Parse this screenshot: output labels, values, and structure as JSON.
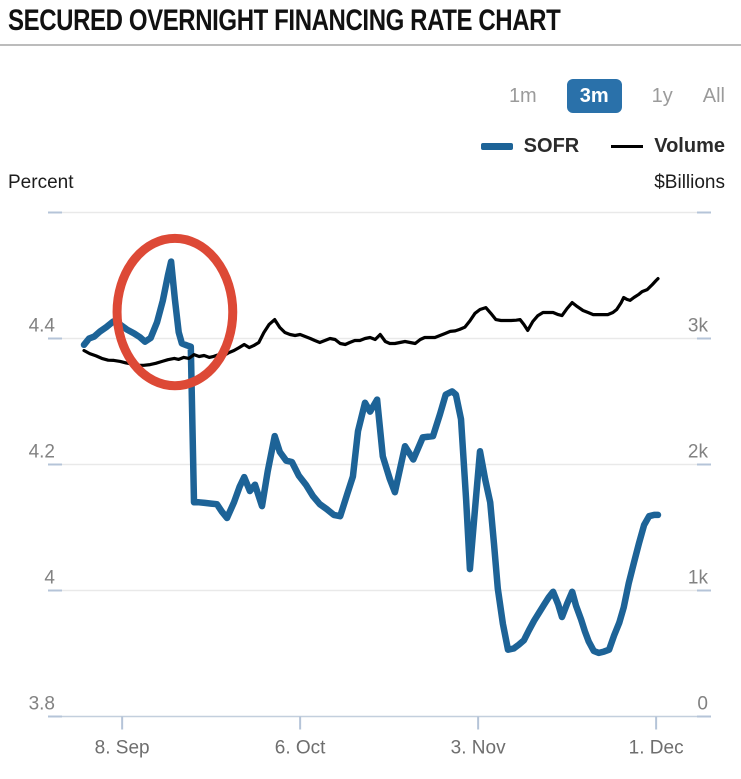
{
  "header": {
    "title": "SECURED OVERNIGHT FINANCING RATE CHART"
  },
  "range_buttons": [
    {
      "label": "1m",
      "selected": false
    },
    {
      "label": "3m",
      "selected": true
    },
    {
      "label": "1y",
      "selected": false
    },
    {
      "label": "All",
      "selected": false
    }
  ],
  "legend": [
    {
      "label": "SOFR",
      "color": "#1d6397"
    },
    {
      "label": "Volume",
      "color": "#000000"
    }
  ],
  "axis_units": {
    "left": "Percent",
    "right": "$Billions"
  },
  "chart_data": {
    "type": "line",
    "title": "SECURED OVERNIGHT FINANCING RATE CHART",
    "selected_range": "3m",
    "x": {
      "unit": "days_since_start",
      "start_date": "2. Sep",
      "domain": [
        0,
        90.3
      ],
      "tick_labels": [
        "8. Sep",
        "6. Oct",
        "3. Nov",
        "1. Dec"
      ],
      "tick_day_offsets": [
        6,
        34,
        62,
        90
      ]
    },
    "y_left": {
      "label": "Percent",
      "range": [
        3.8,
        4.6
      ],
      "tick_labels": [
        "4.4",
        "4.2",
        "4",
        "3.8"
      ],
      "tick_values": [
        4.4,
        4.2,
        4.0,
        3.8
      ]
    },
    "y_right": {
      "label": "$Billions",
      "range": [
        0,
        4000
      ],
      "tick_labels": [
        "3k",
        "2k",
        "1k",
        "0"
      ],
      "tick_values": [
        3000,
        2000,
        1000,
        0
      ]
    },
    "grid": true,
    "legend_position": "top-right",
    "series": [
      {
        "name": "SOFR",
        "axis": "left",
        "color": "#1d6397",
        "line_width": 6.5,
        "points": [
          [
            0,
            4.39
          ],
          [
            0.8,
            4.4
          ],
          [
            1.6,
            4.403
          ],
          [
            2.5,
            4.411
          ],
          [
            3.5,
            4.418
          ],
          [
            4.6,
            4.427
          ],
          [
            5.7,
            4.422
          ],
          [
            6.8,
            4.414
          ],
          [
            7.9,
            4.408
          ],
          [
            8.8,
            4.402
          ],
          [
            9.6,
            4.395
          ],
          [
            10.5,
            4.401
          ],
          [
            11.5,
            4.426
          ],
          [
            12.4,
            4.46
          ],
          [
            13.2,
            4.5
          ],
          [
            13.7,
            4.522
          ],
          [
            14.3,
            4.462
          ],
          [
            14.9,
            4.41
          ],
          [
            15.4,
            4.392
          ],
          [
            16.2,
            4.389
          ],
          [
            16.8,
            4.387
          ],
          [
            17.3,
            4.14
          ],
          [
            18.1,
            4.14
          ],
          [
            19,
            4.139
          ],
          [
            20,
            4.138
          ],
          [
            20.9,
            4.137
          ],
          [
            21.7,
            4.125
          ],
          [
            22.5,
            4.115
          ],
          [
            23.6,
            4.14
          ],
          [
            24.5,
            4.165
          ],
          [
            25.2,
            4.18
          ],
          [
            26.1,
            4.158
          ],
          [
            26.9,
            4.168
          ],
          [
            28,
            4.134
          ],
          [
            28.9,
            4.189
          ],
          [
            30,
            4.245
          ],
          [
            30.8,
            4.22
          ],
          [
            31.8,
            4.206
          ],
          [
            32.7,
            4.204
          ],
          [
            33.8,
            4.182
          ],
          [
            34.9,
            4.168
          ],
          [
            36,
            4.15
          ],
          [
            37.1,
            4.137
          ],
          [
            38.2,
            4.129
          ],
          [
            39.3,
            4.12
          ],
          [
            40.3,
            4.118
          ],
          [
            41.4,
            4.153
          ],
          [
            42.3,
            4.181
          ],
          [
            43.1,
            4.253
          ],
          [
            44.2,
            4.298
          ],
          [
            45,
            4.284
          ],
          [
            46.1,
            4.303
          ],
          [
            47,
            4.213
          ],
          [
            48.1,
            4.177
          ],
          [
            48.9,
            4.156
          ],
          [
            50.5,
            4.229
          ],
          [
            51.8,
            4.208
          ],
          [
            53.3,
            4.243
          ],
          [
            54.9,
            4.245
          ],
          [
            56,
            4.28
          ],
          [
            56.9,
            4.311
          ],
          [
            57.9,
            4.316
          ],
          [
            58.5,
            4.311
          ],
          [
            59.3,
            4.272
          ],
          [
            60.1,
            4.145
          ],
          [
            60.7,
            4.034
          ],
          [
            61.5,
            4.129
          ],
          [
            62.3,
            4.221
          ],
          [
            63.1,
            4.177
          ],
          [
            63.9,
            4.14
          ],
          [
            64.5,
            4.074
          ],
          [
            65.1,
            4.003
          ],
          [
            65.9,
            3.947
          ],
          [
            66.7,
            3.906
          ],
          [
            67.6,
            3.908
          ],
          [
            68.4,
            3.914
          ],
          [
            69.2,
            3.921
          ],
          [
            70,
            3.937
          ],
          [
            70.8,
            3.952
          ],
          [
            71.6,
            3.965
          ],
          [
            72.4,
            3.978
          ],
          [
            73.1,
            3.989
          ],
          [
            73.8,
            3.998
          ],
          [
            74.6,
            3.978
          ],
          [
            75.2,
            3.958
          ],
          [
            76,
            3.979
          ],
          [
            76.8,
            3.998
          ],
          [
            77.4,
            3.976
          ],
          [
            78.2,
            3.954
          ],
          [
            78.8,
            3.935
          ],
          [
            79.4,
            3.919
          ],
          [
            80.2,
            3.904
          ],
          [
            81,
            3.901
          ],
          [
            81.8,
            3.903
          ],
          [
            82.6,
            3.906
          ],
          [
            83.4,
            3.929
          ],
          [
            84.2,
            3.949
          ],
          [
            84.9,
            3.973
          ],
          [
            85.7,
            4.012
          ],
          [
            86.5,
            4.044
          ],
          [
            87.3,
            4.075
          ],
          [
            88.1,
            4.104
          ],
          [
            88.9,
            4.118
          ],
          [
            89.7,
            4.12
          ],
          [
            90.3,
            4.12
          ]
        ]
      },
      {
        "name": "Volume",
        "axis": "right",
        "color": "#000000",
        "line_width": 3.2,
        "points": [
          [
            0,
            2905
          ],
          [
            0.9,
            2880
          ],
          [
            1.9,
            2862
          ],
          [
            2.8,
            2842
          ],
          [
            3.8,
            2828
          ],
          [
            4.7,
            2826
          ],
          [
            5.7,
            2818
          ],
          [
            6.6,
            2806
          ],
          [
            7.6,
            2798
          ],
          [
            8.5,
            2788
          ],
          [
            9.4,
            2787
          ],
          [
            10.4,
            2793
          ],
          [
            11.3,
            2803
          ],
          [
            12.3,
            2818
          ],
          [
            13.2,
            2832
          ],
          [
            14.2,
            2842
          ],
          [
            14.9,
            2834
          ],
          [
            15.7,
            2850
          ],
          [
            16.5,
            2842
          ],
          [
            17.3,
            2872
          ],
          [
            18.1,
            2857
          ],
          [
            18.9,
            2865
          ],
          [
            19.7,
            2850
          ],
          [
            20.4,
            2858
          ],
          [
            21.2,
            2872
          ],
          [
            22,
            2865
          ],
          [
            22.8,
            2888
          ],
          [
            23.6,
            2905
          ],
          [
            24.4,
            2928
          ],
          [
            25.2,
            2952
          ],
          [
            26,
            2928
          ],
          [
            26.7,
            2944
          ],
          [
            27.5,
            2968
          ],
          [
            28.3,
            3048
          ],
          [
            29.1,
            3110
          ],
          [
            30,
            3150
          ],
          [
            30.8,
            3087
          ],
          [
            31.6,
            3048
          ],
          [
            32.4,
            3032
          ],
          [
            33.2,
            3024
          ],
          [
            34,
            3032
          ],
          [
            34.8,
            3016
          ],
          [
            35.6,
            3000
          ],
          [
            36.3,
            2984
          ],
          [
            37.1,
            2968
          ],
          [
            37.9,
            2984
          ],
          [
            38.7,
            3000
          ],
          [
            39.5,
            2992
          ],
          [
            40.3,
            2960
          ],
          [
            41.1,
            2952
          ],
          [
            41.8,
            2968
          ],
          [
            42.6,
            2984
          ],
          [
            43.4,
            2984
          ],
          [
            44.2,
            3000
          ],
          [
            45,
            3008
          ],
          [
            45.8,
            2992
          ],
          [
            46.6,
            3032
          ],
          [
            47.4,
            2976
          ],
          [
            48.1,
            2960
          ],
          [
            48.9,
            2960
          ],
          [
            49.7,
            2968
          ],
          [
            50.5,
            2976
          ],
          [
            51.3,
            2968
          ],
          [
            52.1,
            2960
          ],
          [
            52.9,
            2992
          ],
          [
            53.6,
            3008
          ],
          [
            54.4,
            3008
          ],
          [
            55.2,
            3008
          ],
          [
            56,
            3024
          ],
          [
            56.8,
            3040
          ],
          [
            57.6,
            3056
          ],
          [
            58.4,
            3060
          ],
          [
            59.1,
            3072
          ],
          [
            59.9,
            3090
          ],
          [
            60.7,
            3140
          ],
          [
            61.5,
            3200
          ],
          [
            62.3,
            3230
          ],
          [
            63.2,
            3245
          ],
          [
            64,
            3200
          ],
          [
            64.8,
            3150
          ],
          [
            65.6,
            3143
          ],
          [
            66.4,
            3143
          ],
          [
            67.2,
            3143
          ],
          [
            68,
            3145
          ],
          [
            68.6,
            3150
          ],
          [
            69.2,
            3111
          ],
          [
            69.8,
            3064
          ],
          [
            70.6,
            3135
          ],
          [
            71.4,
            3182
          ],
          [
            72.2,
            3206
          ],
          [
            73,
            3206
          ],
          [
            73.8,
            3206
          ],
          [
            74.6,
            3190
          ],
          [
            75.2,
            3182
          ],
          [
            76,
            3238
          ],
          [
            76.8,
            3285
          ],
          [
            77.6,
            3253
          ],
          [
            78.5,
            3222
          ],
          [
            79.3,
            3206
          ],
          [
            80.1,
            3190
          ],
          [
            80.9,
            3190
          ],
          [
            81.6,
            3190
          ],
          [
            82.4,
            3190
          ],
          [
            83.2,
            3206
          ],
          [
            83.8,
            3230
          ],
          [
            84.5,
            3285
          ],
          [
            84.9,
            3325
          ],
          [
            85.4,
            3310
          ],
          [
            85.9,
            3302
          ],
          [
            86.5,
            3325
          ],
          [
            87.2,
            3348
          ],
          [
            87.8,
            3372
          ],
          [
            88.6,
            3388
          ],
          [
            89.4,
            3428
          ],
          [
            90,
            3460
          ],
          [
            90.3,
            3475
          ]
        ]
      }
    ],
    "annotation": {
      "shape": "ellipse",
      "note": "red circle highlighting the mid-September SOFR spike",
      "color": "#dd4936",
      "center_day": 14.3,
      "center_value": 4.442,
      "radius_days": 9.1,
      "radius_value": 0.117,
      "stroke_width": 9
    }
  }
}
